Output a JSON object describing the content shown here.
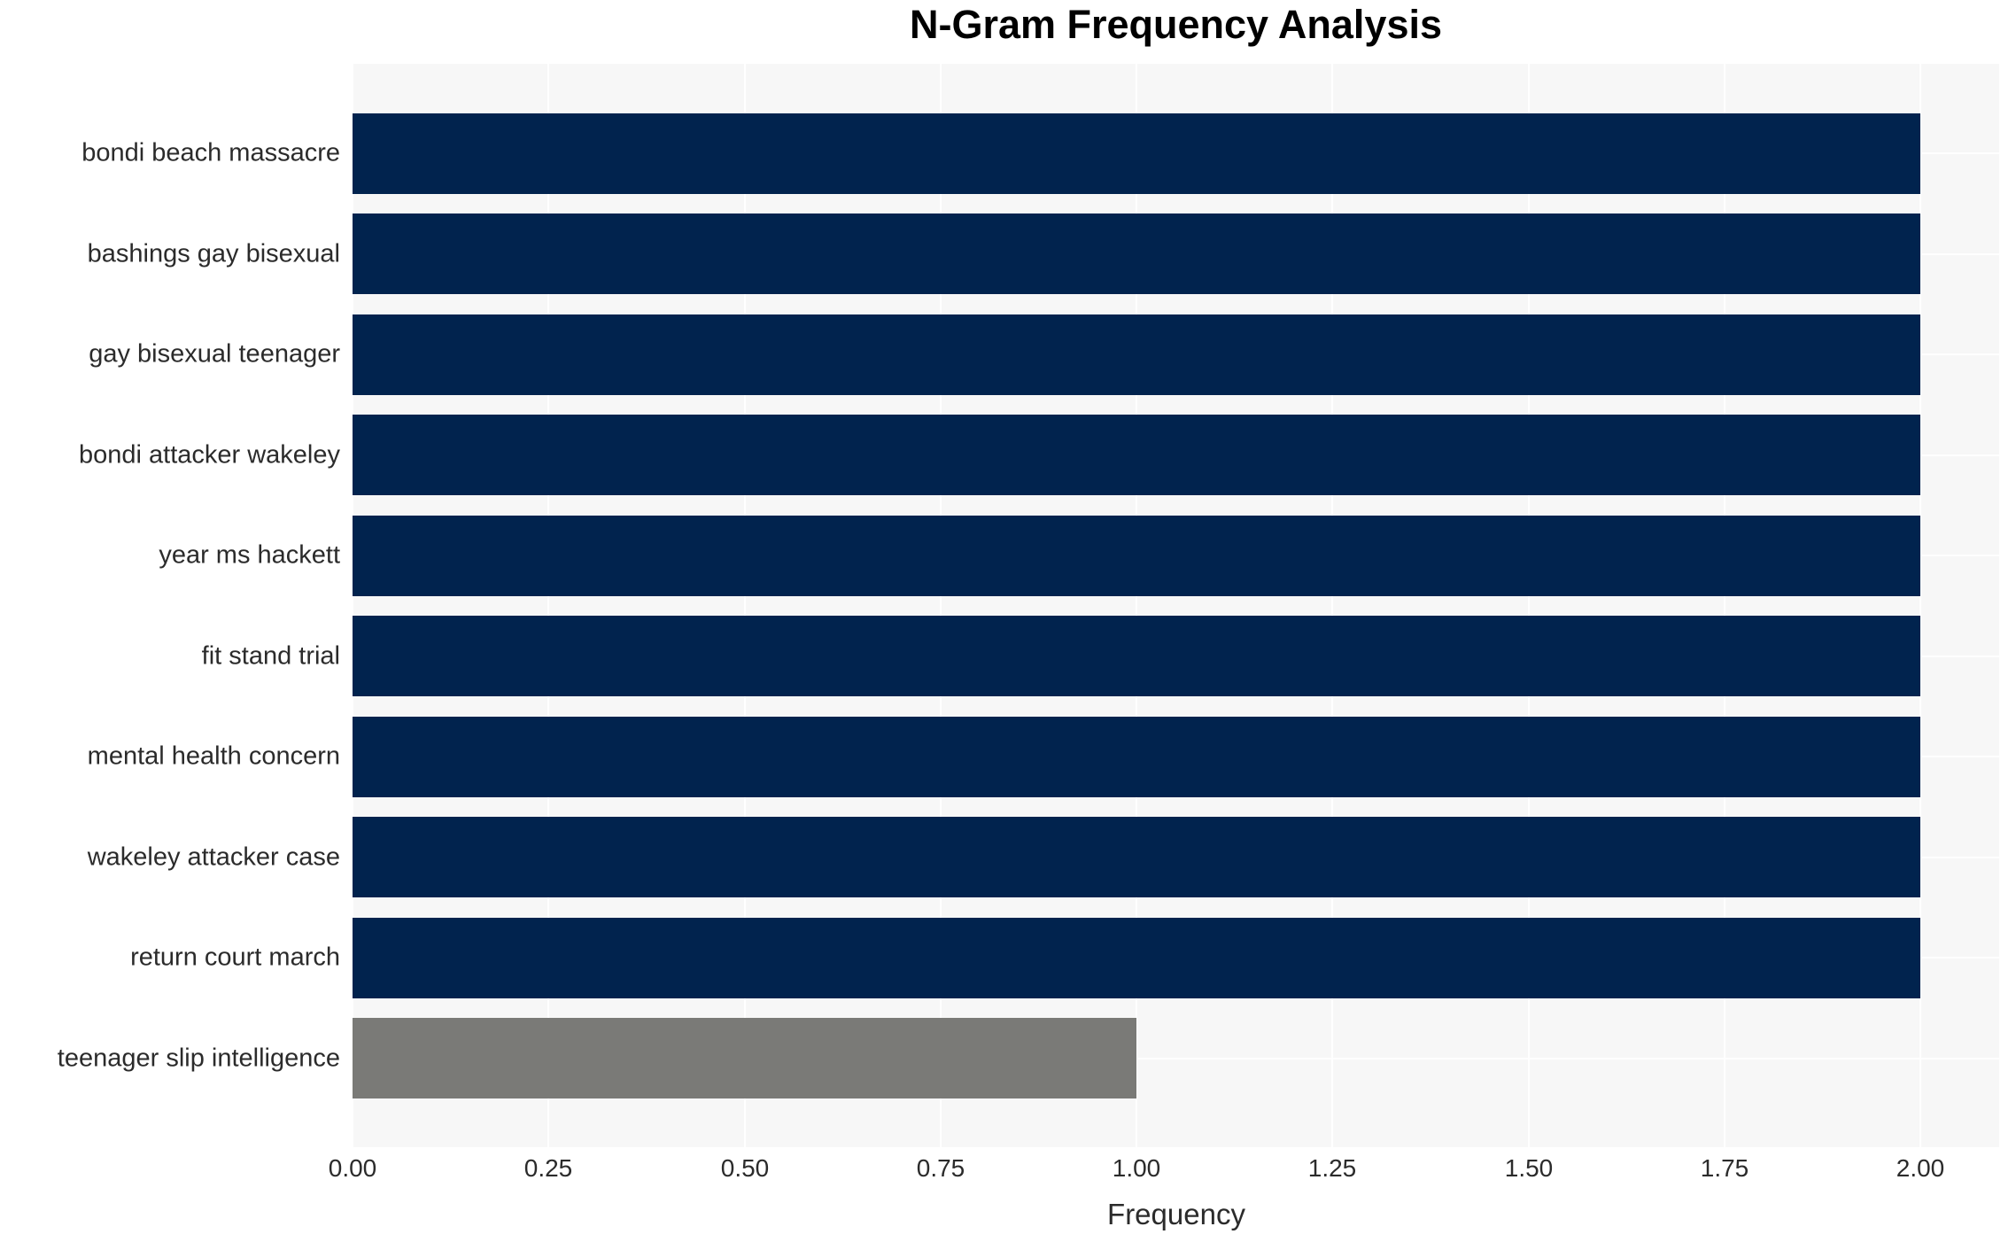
{
  "chart_data": {
    "type": "bar",
    "orientation": "horizontal",
    "title": "N-Gram Frequency Analysis",
    "xlabel": "Frequency",
    "ylabel": "",
    "categories": [
      "bondi beach massacre",
      "bashings gay bisexual",
      "gay bisexual teenager",
      "bondi attacker wakeley",
      "year ms hackett",
      "fit stand trial",
      "mental health concern",
      "wakeley attacker case",
      "return court march",
      "teenager slip intelligence"
    ],
    "values": [
      2,
      2,
      2,
      2,
      2,
      2,
      2,
      2,
      2,
      1
    ],
    "bar_colors": [
      "#01234e",
      "#01234e",
      "#01234e",
      "#01234e",
      "#01234e",
      "#01234e",
      "#01234e",
      "#01234e",
      "#01234e",
      "#7a7a77"
    ],
    "xlim": [
      0,
      2.1
    ],
    "x_ticks": [
      0,
      0.25,
      0.5,
      0.75,
      1.0,
      1.25,
      1.5,
      1.75,
      2.0
    ],
    "x_tick_labels": [
      "0.00",
      "0.25",
      "0.50",
      "0.75",
      "1.00",
      "1.25",
      "1.50",
      "1.75",
      "2.00"
    ],
    "grid": true,
    "legend": false,
    "colors": {
      "plot_background": "#f7f7f7",
      "grid_line": "#ffffff",
      "bar_primary": "#01234e",
      "bar_secondary": "#7a7a77",
      "text": "#2b2b2b",
      "title_text": "#000000",
      "figure_background": "#ffffff"
    }
  }
}
